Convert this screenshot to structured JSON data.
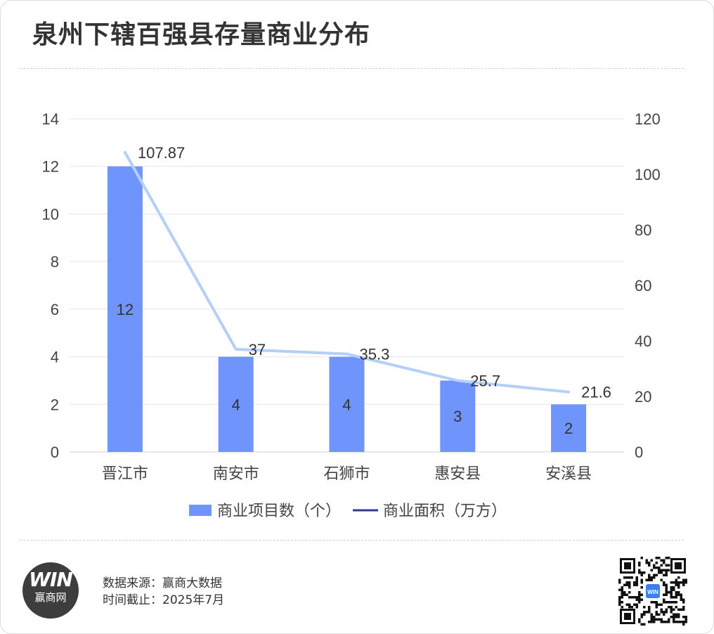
{
  "title": "泉州下辖百强县存量商业分布",
  "chart_data": {
    "type": "bar",
    "categories": [
      "晋江市",
      "南安市",
      "石狮市",
      "惠安县",
      "安溪县"
    ],
    "series": [
      {
        "name": "商业项目数（个）",
        "type": "bar",
        "axis": "left",
        "values": [
          12,
          4,
          4,
          3,
          2
        ],
        "color": "#6f94fb"
      },
      {
        "name": "商业面积（万方）",
        "type": "line",
        "axis": "right",
        "values": [
          107.87,
          37,
          35.3,
          25.7,
          21.6
        ],
        "color": "#b4cff8"
      }
    ],
    "line_labels": [
      "107.87",
      "37",
      "35.3",
      "25.7",
      "21.6"
    ],
    "ylim_left": [
      0,
      14
    ],
    "yticks_left": [
      0,
      2,
      4,
      6,
      8,
      10,
      12,
      14
    ],
    "ylim_right": [
      0,
      120
    ],
    "yticks_right": [
      0,
      20,
      40,
      60,
      80,
      100,
      120
    ],
    "legend_line_color": "#2e3a94",
    "grid": true,
    "legend_position": "bottom"
  },
  "footer": {
    "logo_mark": "WIN",
    "logo_text": "赢商网",
    "source_line1": "数据来源：赢商大数据",
    "source_line2": "时间截止：2025年7月",
    "qr_badge": "WIN"
  }
}
